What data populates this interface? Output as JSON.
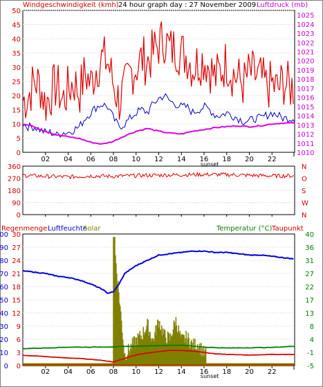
{
  "header": {
    "wind_title": "Windgeschwindigkeit (kmh)",
    "graph_caption": "24 hour graph day : 27 November 2009",
    "pressure_title": "Luftdruck (mb)"
  },
  "bottom_header": {
    "rain": "Regenmenge",
    "humidity": "Luftfeuchte",
    "solar": "Solar",
    "temperature": "Temperatur (°C)",
    "dewpoint": "Taupunkt"
  },
  "x_axis": {
    "ticks": [
      "02",
      "04",
      "06",
      "08",
      "10",
      "12",
      "14",
      "16",
      "18",
      "20",
      "22"
    ],
    "sunset_label": "sunset"
  },
  "panel_top": {
    "wind_ticks": [
      "0",
      "5",
      "10",
      "15",
      "20",
      "25",
      "30",
      "35",
      "40",
      "45",
      "50"
    ],
    "pressure_ticks": [
      "1010",
      "1011",
      "1012",
      "1013",
      "1014",
      "1015",
      "1016",
      "1017",
      "1018",
      "1019",
      "1020",
      "1021",
      "1022",
      "1023",
      "1024",
      "1025"
    ]
  },
  "panel_mid": {
    "deg_ticks": [
      "0",
      "90",
      "180",
      "270",
      "360"
    ],
    "dir_ticks": [
      "N",
      "O",
      "S",
      "W",
      "N"
    ]
  },
  "panel_bot": {
    "hum_ticks": [
      "0",
      "10",
      "20",
      "30",
      "40",
      "50",
      "60",
      "70",
      "80",
      "90",
      "100"
    ],
    "rain_ticks": [
      "0",
      "3",
      "6",
      "9",
      "12",
      "15",
      "18",
      "21",
      "24",
      "27",
      "30"
    ],
    "temp_ticks": [
      "-5",
      "-1",
      "4",
      "8",
      "13",
      "17",
      "22",
      "27",
      "31",
      "36",
      "40"
    ]
  },
  "colors": {
    "wind": "#e00000",
    "wind_avg": "#0000c0",
    "pressure": "#e000e0",
    "humidity": "#0000e0",
    "temperature": "#008000",
    "dewpoint": "#e00000",
    "solar": "#808000",
    "title_red": "#cc0000",
    "title_magenta": "#cc00cc",
    "title_green": "#008000"
  },
  "chart_data": [
    {
      "type": "line",
      "title": "24 hour graph day : 27 November 2009",
      "x_unit": "hour",
      "xlim": [
        0,
        24
      ],
      "ylim": [
        0,
        50
      ],
      "y2lim": [
        1010,
        1025.5
      ],
      "series": [
        {
          "name": "Windgeschwindigkeit (kmh)",
          "axis": "left",
          "x": [
            0,
            0.5,
            1,
            1.5,
            2,
            2.5,
            3,
            3.5,
            4,
            4.5,
            5,
            5.5,
            6,
            6.5,
            7,
            7.5,
            8,
            8.5,
            9,
            9.5,
            10,
            10.5,
            11,
            11.5,
            12,
            12.5,
            13,
            13.5,
            14,
            14.5,
            15,
            15.5,
            16,
            16.5,
            17,
            17.5,
            18,
            18.5,
            19,
            19.5,
            20,
            20.5,
            21,
            21.5,
            22,
            22.5,
            23,
            23.5
          ],
          "values": [
            18,
            20,
            25,
            24,
            17,
            21,
            24,
            18,
            22,
            25,
            21,
            28,
            24,
            30,
            33,
            32,
            24,
            18,
            22,
            28,
            30,
            33,
            32,
            35,
            38,
            40,
            36,
            37,
            35,
            34,
            30,
            32,
            33,
            30,
            26,
            29,
            32,
            28,
            26,
            24,
            28,
            27,
            26,
            23,
            24,
            22,
            25,
            23
          ]
        },
        {
          "name": "wind average",
          "axis": "left",
          "x": [
            0,
            0.5,
            1,
            1.5,
            2,
            2.5,
            3,
            3.5,
            4,
            4.5,
            5,
            5.5,
            6,
            6.5,
            7,
            7.5,
            8,
            8.5,
            9,
            9.5,
            10,
            10.5,
            11,
            11.5,
            12,
            12.5,
            13,
            13.5,
            14,
            14.5,
            15,
            15.5,
            16,
            16.5,
            17,
            17.5,
            18,
            18.5,
            19,
            19.5,
            20,
            20.5,
            21,
            21.5,
            22,
            22.5,
            23,
            23.5
          ],
          "values": [
            10,
            9,
            9,
            8,
            7,
            7,
            6,
            7,
            7,
            8,
            9,
            12,
            14,
            16,
            17,
            16,
            12,
            9,
            10,
            12,
            14,
            15,
            14,
            17,
            19,
            20,
            18,
            17,
            16,
            16,
            14,
            15,
            16,
            15,
            13,
            13,
            14,
            13,
            12,
            11,
            11,
            12,
            12,
            13,
            14,
            13,
            12,
            12
          ]
        },
        {
          "name": "Luftdruck (mb)",
          "axis": "right",
          "x": [
            0,
            1,
            2,
            3,
            4,
            5,
            6,
            7,
            8,
            9,
            10,
            11,
            12,
            13,
            14,
            15,
            16,
            17,
            18,
            19,
            20,
            21,
            22,
            23,
            24
          ],
          "values": [
            1013.1,
            1012.8,
            1012.3,
            1011.9,
            1011.7,
            1011.5,
            1011.1,
            1010.9,
            1011.2,
            1011.8,
            1012.3,
            1012.6,
            1012.3,
            1012.1,
            1012.0,
            1012.3,
            1012.5,
            1012.7,
            1012.8,
            1012.9,
            1012.8,
            1012.9,
            1013.1,
            1013.2,
            1013.2
          ]
        }
      ]
    },
    {
      "type": "line",
      "ylabel": "",
      "x_unit": "hour",
      "xlim": [
        0,
        24
      ],
      "ylim": [
        0,
        360
      ],
      "series": [
        {
          "name": "wind direction",
          "x": [
            0,
            2,
            4,
            6,
            8,
            10,
            12,
            14,
            16,
            18,
            20,
            22,
            24
          ],
          "values": [
            292,
            285,
            280,
            288,
            285,
            290,
            293,
            296,
            298,
            297,
            292,
            288,
            289
          ]
        }
      ]
    },
    {
      "type": "line",
      "x_unit": "hour",
      "xlim": [
        0,
        24
      ],
      "ylim": [
        0,
        100
      ],
      "y_rain_lim": [
        0,
        30
      ],
      "y2lim": [
        -5,
        40
      ],
      "series": [
        {
          "name": "Luftfeuchte",
          "axis": "left",
          "x": [
            0,
            1,
            2,
            3,
            4,
            5,
            6,
            7,
            7.5,
            8,
            8.5,
            9,
            10,
            11,
            12,
            13,
            14,
            15,
            16,
            17,
            18,
            19,
            20,
            21,
            22,
            23,
            24
          ],
          "values": [
            72,
            71,
            70,
            68,
            67,
            65,
            62,
            58,
            55,
            56,
            62,
            70,
            76,
            80,
            84,
            85,
            86,
            87,
            87,
            86,
            86,
            85,
            84,
            84,
            83,
            82,
            81
          ]
        },
        {
          "name": "Temperatur (°C)",
          "axis": "right",
          "x": [
            0,
            2,
            4,
            6,
            8,
            10,
            12,
            14,
            16,
            18,
            20,
            22,
            24
          ],
          "values": [
            0.8,
            1.0,
            1.3,
            1.3,
            1.4,
            1.6,
            1.8,
            2.0,
            1.3,
            1.0,
            1.1,
            1.2,
            1.6
          ]
        },
        {
          "name": "Taupunkt",
          "axis": "right",
          "x": [
            0,
            1,
            2,
            3,
            4,
            5,
            6,
            7,
            8,
            9,
            10,
            11,
            12,
            13,
            14,
            15,
            16,
            17,
            18,
            19,
            20,
            21,
            22,
            23,
            24
          ],
          "values": [
            -1.5,
            -1.7,
            -1.9,
            -2.2,
            -2.4,
            -2.6,
            -2.9,
            -3.2,
            -3.8,
            -2.5,
            -1.4,
            -0.7,
            -0.2,
            0.2,
            0.1,
            0.0,
            -0.5,
            -1.0,
            -1.2,
            -1.3,
            -1.4,
            -1.3,
            -1.2,
            -1.2,
            -1.2
          ]
        },
        {
          "name": "Solar",
          "axis": "right",
          "x": [
            8.0,
            9.0,
            10.0,
            10.5,
            11.0,
            11.5,
            12.0,
            12.5,
            13.0,
            13.5,
            14.0,
            14.5,
            15.0,
            15.5,
            16.0
          ],
          "values": [
            39,
            -2.5,
            2.6,
            4.3,
            8.0,
            2.4,
            9.5,
            4.2,
            3.1,
            9.6,
            2.6,
            3.6,
            0.9,
            1.3,
            -1.8
          ]
        }
      ]
    }
  ]
}
